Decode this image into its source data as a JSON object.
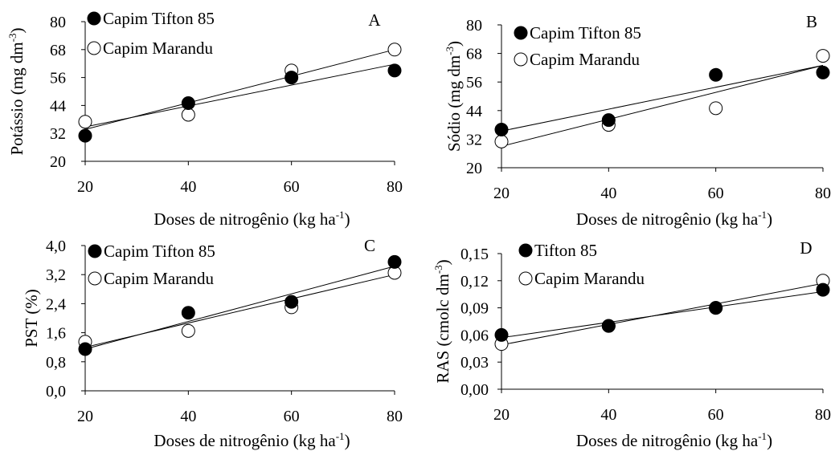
{
  "chart_data": [
    {
      "type": "scatter",
      "panel_letter": "A",
      "title": "",
      "xlabel": "Doses de nitrogênio (kg ha",
      "xlabel_sup": "-1",
      "xlabel_end": ")",
      "ylabel": "Potássio (mg dm",
      "ylabel_sup": "-3",
      "ylabel_end": ")",
      "xlim": [
        20,
        80
      ],
      "ylim": [
        20,
        80
      ],
      "xticks": [
        "20",
        "40",
        "60",
        "80"
      ],
      "yticks": [
        "20",
        "32",
        "44",
        "56",
        "68",
        "80"
      ],
      "legend_position": "top-left",
      "series": [
        {
          "name": "Capim Tifton 85",
          "marker": "filled",
          "x": [
            20,
            40,
            60,
            80
          ],
          "y": [
            31,
            45,
            56,
            59
          ],
          "trend": [
            34.8,
            61.7
          ]
        },
        {
          "name": "Capim Marandu",
          "marker": "open",
          "x": [
            20,
            40,
            60,
            80
          ],
          "y": [
            37,
            40,
            59,
            68
          ],
          "trend": [
            33.7,
            68.0
          ]
        }
      ]
    },
    {
      "type": "scatter",
      "panel_letter": "B",
      "title": "",
      "xlabel": "Doses de nitrogênio (kg ha",
      "xlabel_sup": "-1",
      "xlabel_end": ")",
      "ylabel": "Sódio (mg dm",
      "ylabel_sup": "-3",
      "ylabel_end": ")",
      "xlim": [
        20,
        80
      ],
      "ylim": [
        20,
        80
      ],
      "xticks": [
        "20",
        "40",
        "60",
        "80"
      ],
      "yticks": [
        "20",
        "32",
        "44",
        "56",
        "68",
        "80"
      ],
      "legend_position": "top-left",
      "series": [
        {
          "name": "Capim Tifton 85",
          "marker": "filled",
          "x": [
            20,
            40,
            60,
            80
          ],
          "y": [
            36,
            40,
            59,
            60
          ],
          "trend": [
            35.4,
            63.0
          ]
        },
        {
          "name": "Capim Marandu",
          "marker": "open",
          "x": [
            20,
            40,
            60,
            80
          ],
          "y": [
            31,
            38,
            45,
            67
          ],
          "trend": [
            29.0,
            63.0
          ]
        }
      ]
    },
    {
      "type": "scatter",
      "panel_letter": "C",
      "title": "",
      "xlabel": "Doses de nitrogênio (kg ha",
      "xlabel_sup": "-1",
      "xlabel_end": ")",
      "ylabel": "PST (%)",
      "ylabel_sup": "",
      "ylabel_end": "",
      "xlim": [
        20,
        80
      ],
      "ylim": [
        0,
        4.0
      ],
      "xticks": [
        "20",
        "40",
        "60",
        "80"
      ],
      "yticks": [
        "0,0",
        "0,8",
        "1,6",
        "2,4",
        "3,2",
        "4,0"
      ],
      "legend_position": "top-left",
      "series": [
        {
          "name": "Capim Tifton 85",
          "marker": "filled",
          "x": [
            20,
            40,
            60,
            80
          ],
          "y": [
            1.15,
            2.15,
            2.45,
            3.55
          ],
          "trend": [
            1.15,
            3.43
          ]
        },
        {
          "name": "Capim Marandu",
          "marker": "open",
          "x": [
            20,
            40,
            60,
            80
          ],
          "y": [
            1.35,
            1.65,
            2.3,
            3.25
          ],
          "trend": [
            1.2,
            3.2
          ]
        }
      ]
    },
    {
      "type": "scatter",
      "panel_letter": "D",
      "title": "",
      "xlabel": "Doses de nitrogênio (kg ha",
      "xlabel_sup": "-1",
      "xlabel_end": ")",
      "ylabel": "RAS (cmolc dm",
      "ylabel_sup": "-3",
      "ylabel_end": ")",
      "xlim": [
        20,
        80
      ],
      "ylim": [
        0,
        0.15
      ],
      "xticks": [
        "20",
        "40",
        "60",
        "80"
      ],
      "yticks": [
        "0,00",
        "0,03",
        "0,06",
        "0,09",
        "0,12",
        "0,15"
      ],
      "legend_position": "top-left",
      "series": [
        {
          "name": "Tifton 85",
          "marker": "filled",
          "x": [
            20,
            40,
            60,
            80
          ],
          "y": [
            0.06,
            0.07,
            0.09,
            0.11
          ],
          "trend": [
            0.057,
            0.108
          ]
        },
        {
          "name": "Capim Marandu",
          "marker": "open",
          "x": [
            20,
            40,
            60,
            80
          ],
          "y": [
            0.05,
            0.07,
            0.09,
            0.12
          ],
          "trend": [
            0.049,
            0.117
          ]
        }
      ]
    }
  ]
}
